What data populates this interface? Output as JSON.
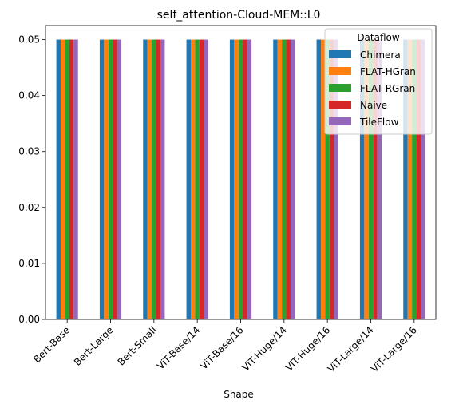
{
  "chart_data": {
    "type": "bar",
    "title": "self_attention-Cloud-MEM::L0",
    "xlabel": "Shape",
    "ylabel": "",
    "categories": [
      "Bert-Base",
      "Bert-Large",
      "Bert-Small",
      "ViT-Base/14",
      "ViT-Base/16",
      "ViT-Huge/14",
      "ViT-Huge/16",
      "ViT-Large/14",
      "ViT-Large/16"
    ],
    "ylim": [
      0,
      0.0525
    ],
    "yticks": [
      "0.00",
      "0.01",
      "0.02",
      "0.03",
      "0.04",
      "0.05"
    ],
    "ytick_values": [
      0,
      0.01,
      0.02,
      0.03,
      0.04,
      0.05
    ],
    "grid": false,
    "legend": {
      "title": "Dataflow",
      "placement": "top-right"
    },
    "series": [
      {
        "name": "Chimera",
        "color": "#1f77b4",
        "values": [
          0.05,
          0.05,
          0.05,
          0.05,
          0.05,
          0.05,
          0.05,
          0.05,
          0.05
        ]
      },
      {
        "name": "FLAT-HGran",
        "color": "#ff7f0e",
        "values": [
          0.05,
          0.05,
          0.05,
          0.05,
          0.05,
          0.05,
          0.05,
          0.05,
          0.05
        ]
      },
      {
        "name": "FLAT-RGran",
        "color": "#2ca02c",
        "values": [
          0.05,
          0.05,
          0.05,
          0.05,
          0.05,
          0.05,
          0.05,
          0.05,
          0.05
        ]
      },
      {
        "name": "Naive",
        "color": "#d62728",
        "values": [
          0.05,
          0.05,
          0.05,
          0.05,
          0.05,
          0.05,
          0.05,
          0.05,
          0.05
        ]
      },
      {
        "name": "TileFlow",
        "color": "#9467bd",
        "values": [
          0.05,
          0.05,
          0.05,
          0.05,
          0.05,
          0.05,
          0.05,
          0.05,
          0.05
        ]
      }
    ]
  }
}
